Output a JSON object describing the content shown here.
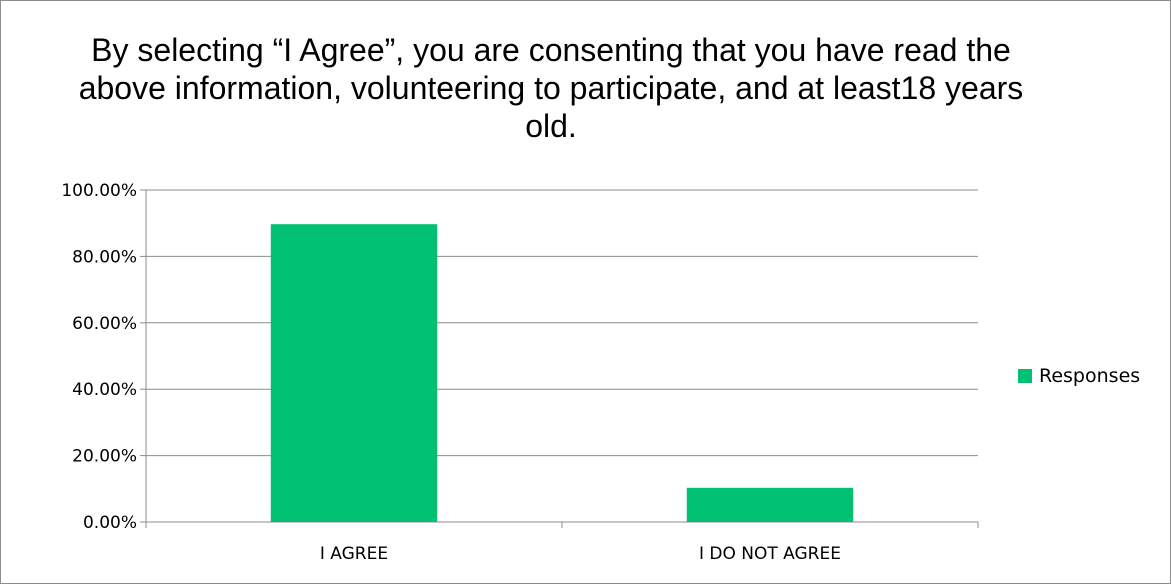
{
  "chart_data": {
    "type": "bar",
    "title": "By selecting “I Agree”, you are consenting that you have read the above information, volunteering to participate, and at least18 years old.",
    "categories": [
      "I AGREE",
      "I DO NOT AGREE"
    ],
    "series": [
      {
        "name": "Responses",
        "values": [
          89.7,
          10.3
        ],
        "color": "#00c073"
      }
    ],
    "y_ticks": [
      "0.00%",
      "20.00%",
      "40.00%",
      "60.00%",
      "80.00%",
      "100.00%"
    ],
    "ylim": [
      0,
      100
    ],
    "grid": true,
    "legend_position": "right"
  }
}
